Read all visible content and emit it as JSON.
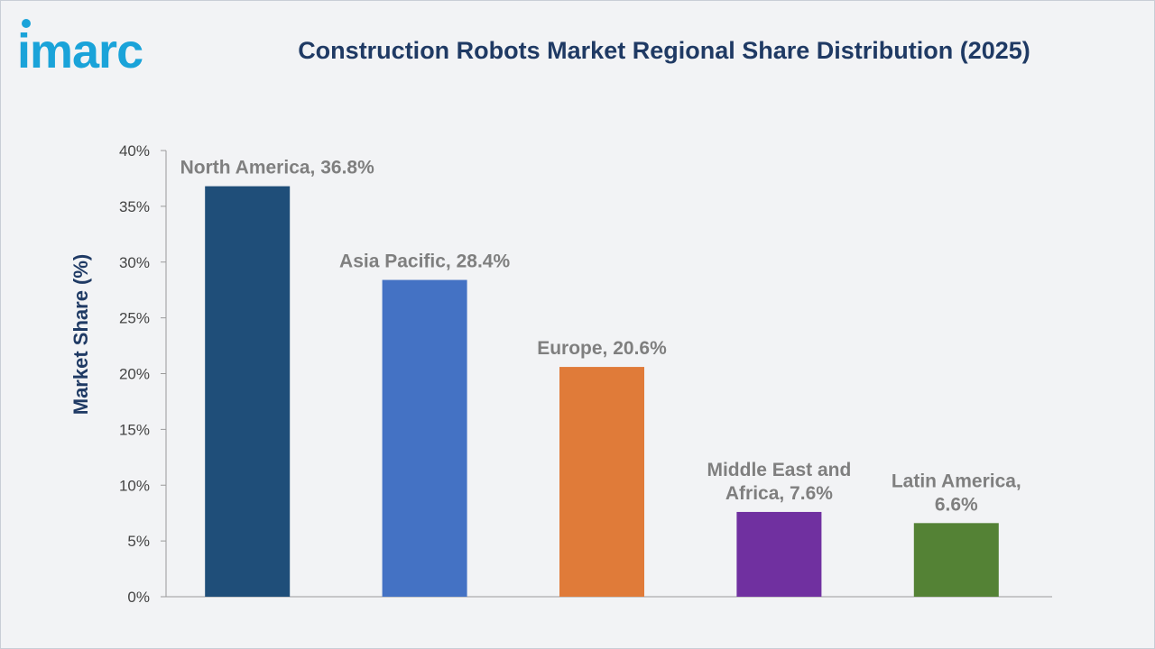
{
  "brand": {
    "logo_text": "imarc",
    "logo_color": "#1aa3d9"
  },
  "header": {
    "title": "Construction Robots Market Regional Share Distribution (2025)"
  },
  "chart_data": {
    "type": "bar",
    "title": "Construction Robots Market Regional Share Distribution (2025)",
    "xlabel": "",
    "ylabel": "Market Share (%)",
    "ylim": [
      0,
      40
    ],
    "yticks": [
      0,
      5,
      10,
      15,
      20,
      25,
      30,
      35,
      40
    ],
    "ytick_labels": [
      "0%",
      "5%",
      "10%",
      "15%",
      "20%",
      "25%",
      "30%",
      "35%",
      "40%"
    ],
    "grid": false,
    "categories": [
      "North America",
      "Asia Pacific",
      "Europe",
      "Middle East and Africa",
      "Latin America"
    ],
    "values": [
      36.8,
      28.4,
      20.6,
      7.6,
      6.6
    ],
    "data_labels": [
      [
        "North America, 36.8%"
      ],
      [
        "Asia Pacific, 28.4%"
      ],
      [
        "Europe, 20.6%"
      ],
      [
        "Middle East and",
        "Africa, 7.6%"
      ],
      [
        "Latin America,",
        "6.6%"
      ]
    ],
    "colors": [
      "#1f4e79",
      "#4472c4",
      "#e07b39",
      "#7030a0",
      "#548235"
    ]
  }
}
